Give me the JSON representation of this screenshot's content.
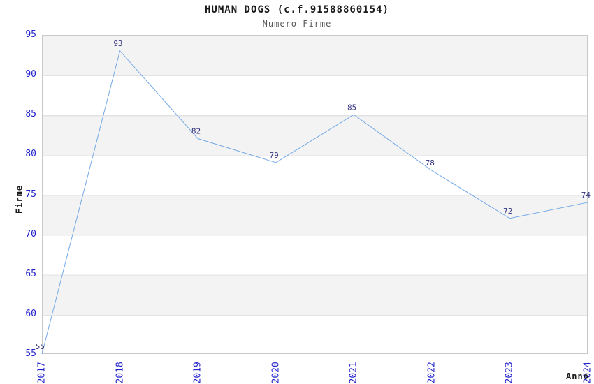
{
  "chart_data": {
    "type": "line",
    "title": "HUMAN DOGS (c.f.91588860154)",
    "subtitle": "Numero Firme",
    "xlabel": "Anno",
    "ylabel": "Firme",
    "categories": [
      "2017",
      "2018",
      "2019",
      "2020",
      "2021",
      "2022",
      "2023",
      "2024"
    ],
    "series": [
      {
        "name": "Numero Firme",
        "values": [
          55,
          93,
          82,
          79,
          85,
          78,
          72,
          74
        ]
      }
    ],
    "ylim": [
      55,
      95
    ],
    "yticks": [
      55,
      60,
      65,
      70,
      75,
      80,
      85,
      90,
      95
    ],
    "grid": "horizontal-bands",
    "legend_position": "none",
    "colors": {
      "line": "#73a9e6",
      "data_label": "#333380",
      "tick_label": "#2323cc",
      "band_dark": "#f3f3f3",
      "band_light": "#ffffff",
      "band_grid_line": "#e3e3e3",
      "plot_border": "#c9c9c9",
      "title_text": "#1a1a1a",
      "subtitle_text": "#595959"
    }
  }
}
